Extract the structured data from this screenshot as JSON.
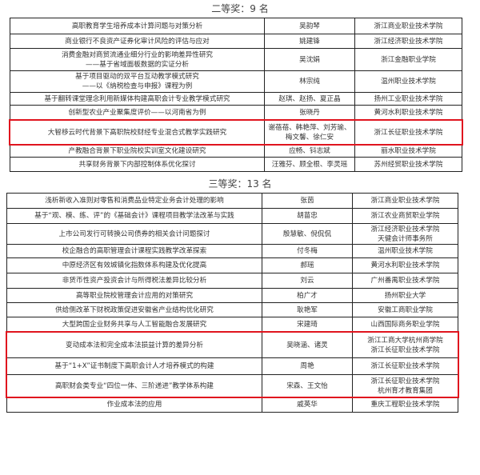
{
  "second_prize": {
    "title": "二等奖：9 名",
    "rows": [
      {
        "title": [
          "高职教育学生培养成本计算问题与对策分析"
        ],
        "authors": [
          "吴韵琴"
        ],
        "org": [
          "浙江商业职业技术学院"
        ]
      },
      {
        "title": [
          "商业银行不良资产证券化审计风险的评估与应对"
        ],
        "authors": [
          "姚建锋"
        ],
        "org": [
          "浙江经济职业技术学院"
        ]
      },
      {
        "title": [
          "消费金融对商贸流通业细分行业的影响差异性研究",
          "——基于省域面板数据的实证分析"
        ],
        "authors": [
          "吴沈娟"
        ],
        "org": [
          "浙江金融职业学院"
        ]
      },
      {
        "title": [
          "基于项目驱动的双平台互动教学模式研究",
          "——以《纳税检查与申报》课程为例"
        ],
        "authors": [
          "林宗纯"
        ],
        "org": [
          "温州职业技术学院"
        ]
      },
      {
        "title": [
          "基于翻转课堂理念利用新媒体构建高职会计专业教学模式研究"
        ],
        "authors": [
          "赵琪、赵扬、夏正晶"
        ],
        "org": [
          "扬州工业职业技术学院"
        ]
      },
      {
        "title": [
          "创新型农业产业聚集度评价——以河南省为例"
        ],
        "authors": [
          "张晓丹"
        ],
        "org": [
          "黄河水利职业技术学院"
        ]
      },
      {
        "title": [
          "大智移云时代背景下高职院校财经专业混合式教学实践研究"
        ],
        "authors": [
          "谢蓓蓓、韩艳萍、刘芳瑜、",
          "梅文馨、徐仁安"
        ],
        "org": [
          "浙江长征职业技术学院"
        ],
        "highlighted": true
      },
      {
        "title": [
          "产教融合背景下职业院校实训室文化建设研究"
        ],
        "authors": [
          "应畅、钭志斌"
        ],
        "org": [
          "丽水职业技术学院"
        ]
      },
      {
        "title": [
          "共享财务背景下内部控制体系优化探讨"
        ],
        "authors": [
          "汪雅芬、顾全根、李灵瑶"
        ],
        "org": [
          "苏州经贸职业技术学院"
        ]
      }
    ]
  },
  "third_prize": {
    "title": "三等奖：13 名",
    "rows": [
      {
        "title": [
          "浅析新收入准则对零售和消费品业特定业务会计处理的影响"
        ],
        "authors": [
          "张茵"
        ],
        "org": [
          "浙江商业职业技术学院"
        ]
      },
      {
        "title": [
          "基于“观、模、练、评”的《基础会计》课程项目教学法改革与实践"
        ],
        "authors": [
          "胡苗忠"
        ],
        "org": [
          "浙江农业商贸职业学院"
        ]
      },
      {
        "title": [
          "上市公司发行可转换公司债券的相关会计问题探讨"
        ],
        "authors": [
          "殷慧敏、倪侃侃"
        ],
        "org": [
          "浙江经济职业技术学院",
          "天健会计师事务所"
        ]
      },
      {
        "title": [
          "校企融合的高职管理会计课程实践教学改革探索"
        ],
        "authors": [
          "付冬梅"
        ],
        "org": [
          "温州职业技术学院"
        ]
      },
      {
        "title": [
          "中原经济区有效城镇化指数体系构建及优化提高"
        ],
        "authors": [
          "郝瑶"
        ],
        "org": [
          "黄河水利职业技术学院"
        ]
      },
      {
        "title": [
          "非货币性资产投资会计与所得税法差异比较分析"
        ],
        "authors": [
          "刘云"
        ],
        "org": [
          "广州番禺职业技术学院"
        ]
      },
      {
        "title": [
          "高等职业院校管理会计应用的对策研究"
        ],
        "authors": [
          "柏广才"
        ],
        "org": [
          "扬州职业大学"
        ]
      },
      {
        "title": [
          "供给侧改革下财税政策促进安徽省产业结构优化研究"
        ],
        "authors": [
          "耿艳军"
        ],
        "org": [
          "安徽工商职业学院"
        ]
      },
      {
        "title": [
          "大型跨国企业财务共享与人工智能融合发展研究"
        ],
        "authors": [
          "宋建琦"
        ],
        "org": [
          "山西国际商务职业学院"
        ]
      },
      {
        "title": [
          "变动成本法和完全成本法损益计算的差异分析"
        ],
        "authors": [
          "吴晓涵、诸灵"
        ],
        "org": [
          "浙江工商大学杭州商学院",
          "浙江长征职业技术学院"
        ],
        "highlighted": true
      },
      {
        "title": [
          "基于“1+X”证书制度下高职会计人才培养模式的构建"
        ],
        "authors": [
          "周艳"
        ],
        "org": [
          "浙江长征职业技术学院"
        ],
        "highlighted": true
      },
      {
        "title": [
          "高职财会类专业“四位一体、三阶递进”教学体系构建"
        ],
        "authors": [
          "宋森、王文怡"
        ],
        "org": [
          "浙江长征职业技术学院",
          "杭州育才教育集团"
        ],
        "highlighted": true
      },
      {
        "title": [
          "作业成本法的应用"
        ],
        "authors": [
          "戚英华"
        ],
        "org": [
          "重庆工程职业技术学院"
        ]
      }
    ]
  },
  "colors": {
    "highlight_border": "#e0141e",
    "text": "#333333"
  }
}
